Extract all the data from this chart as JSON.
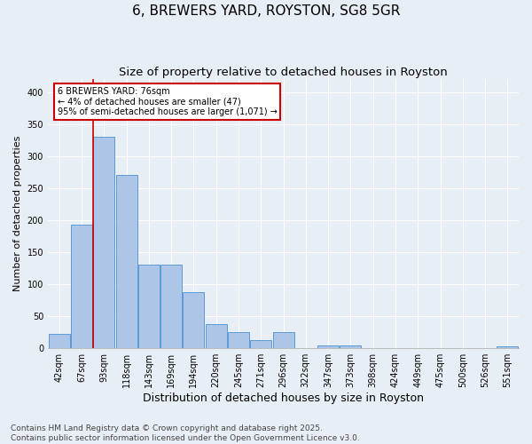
{
  "title": "6, BREWERS YARD, ROYSTON, SG8 5GR",
  "subtitle": "Size of property relative to detached houses in Royston",
  "xlabel": "Distribution of detached houses by size in Royston",
  "ylabel": "Number of detached properties",
  "footer": "Contains HM Land Registry data © Crown copyright and database right 2025.\nContains public sector information licensed under the Open Government Licence v3.0.",
  "categories": [
    "42sqm",
    "67sqm",
    "93sqm",
    "118sqm",
    "143sqm",
    "169sqm",
    "194sqm",
    "220sqm",
    "245sqm",
    "271sqm",
    "296sqm",
    "322sqm",
    "347sqm",
    "373sqm",
    "398sqm",
    "424sqm",
    "449sqm",
    "475sqm",
    "500sqm",
    "526sqm",
    "551sqm"
  ],
  "values": [
    22,
    193,
    330,
    270,
    130,
    130,
    87,
    38,
    25,
    13,
    25,
    0,
    5,
    5,
    0,
    0,
    0,
    0,
    0,
    0,
    3
  ],
  "bar_color": "#adc6e8",
  "bar_edge_color": "#5b9bd5",
  "vline_x": 1.5,
  "annotation_text": "6 BREWERS YARD: 76sqm\n← 4% of detached houses are smaller (47)\n95% of semi-detached houses are larger (1,071) →",
  "annotation_box_color": "#ffffff",
  "annotation_box_edge_color": "#cc0000",
  "vline_color": "#cc0000",
  "ylim": [
    0,
    420
  ],
  "yticks": [
    0,
    50,
    100,
    150,
    200,
    250,
    300,
    350,
    400
  ],
  "bg_color": "#e8eef5",
  "plot_bg_color": "#e8eef5",
  "grid_color": "#ffffff",
  "title_fontsize": 11,
  "subtitle_fontsize": 9.5,
  "xlabel_fontsize": 9,
  "ylabel_fontsize": 8,
  "tick_fontsize": 7,
  "footer_fontsize": 6.5
}
